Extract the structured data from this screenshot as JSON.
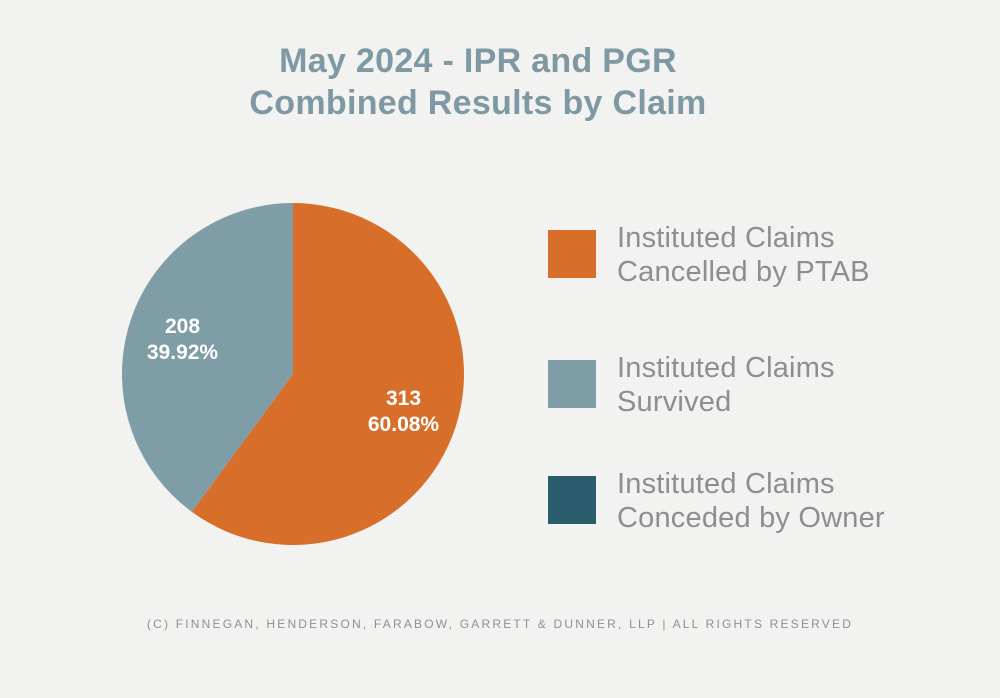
{
  "page": {
    "background_color": "#F2F2F0"
  },
  "title": {
    "line1": "May 2024 - IPR and PGR",
    "line2": "Combined Results by Claim",
    "color": "#7E99A4"
  },
  "chart_data": {
    "type": "pie",
    "title": "May 2024 - IPR and PGR Combined Results by Claim",
    "direction": "clockwise",
    "start_angle_deg": 0,
    "legend_position": "right",
    "label_color": "#FFFFFF",
    "segments": [
      {
        "name": "Instituted Claims Cancelled by PTAB",
        "value": 313,
        "value_label": "313",
        "percent_label": "60.08%",
        "color": "#D76F2B"
      },
      {
        "name": "Instituted Claims Survived",
        "value": 208,
        "value_label": "208",
        "percent_label": "39.92%",
        "color": "#7F9DA6"
      },
      {
        "name": "Instituted Claims Conceded by Owner",
        "value": 0,
        "value_label": "",
        "percent_label": "",
        "color": "#2A5D6B"
      }
    ]
  },
  "legend": {
    "text_color": "#8D8E90",
    "items": [
      {
        "line1": "Instituted Claims",
        "line2": "Cancelled by PTAB",
        "color": "#D76F2B"
      },
      {
        "line1": "Instituted Claims",
        "line2": "Survived",
        "color": "#7F9DA6"
      },
      {
        "line1": "Instituted Claims",
        "line2": "Conceded by Owner",
        "color": "#2A5D6B"
      }
    ]
  },
  "footer": {
    "text": "(C) FINNEGAN, HENDERSON, FARABOW, GARRETT & DUNNER, LLP | ALL RIGHTS RESERVED"
  }
}
